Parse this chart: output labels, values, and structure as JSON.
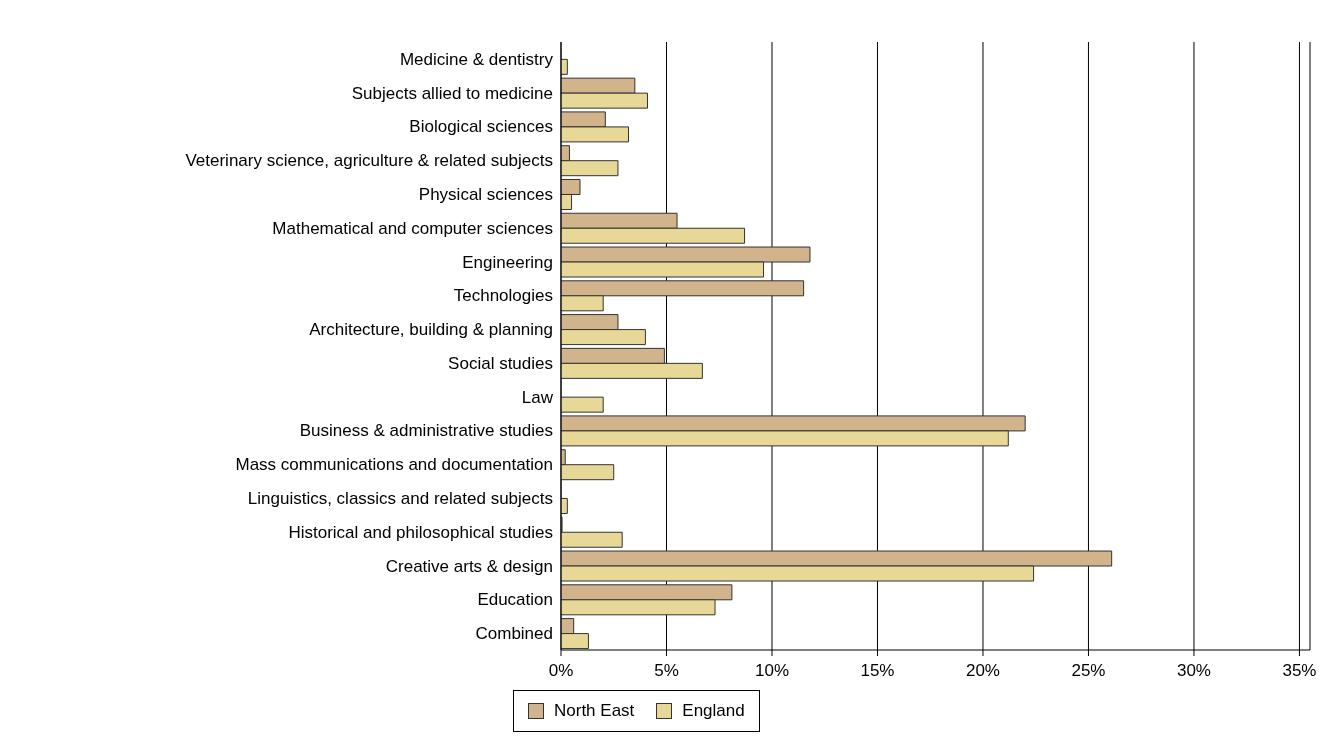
{
  "chart_data": {
    "type": "bar",
    "orientation": "horizontal",
    "categories": [
      "Medicine & dentistry",
      "Subjects allied to medicine",
      "Biological sciences",
      "Veterinary science, agriculture & related subjects",
      "Physical sciences",
      "Mathematical and computer sciences",
      "Engineering",
      "Technologies",
      "Architecture, building & planning",
      "Social studies",
      "Law",
      "Business & administrative studies",
      "Mass communications and documentation",
      "Linguistics, classics and related subjects",
      "Historical and philosophical studies",
      "Creative arts & design",
      "Education",
      "Combined"
    ],
    "series": [
      {
        "name": "North East",
        "color": "#d2b48c",
        "values": [
          null,
          3.5,
          2.1,
          0.4,
          0.9,
          5.5,
          11.8,
          11.5,
          2.7,
          4.9,
          null,
          22.0,
          0.2,
          null,
          0.05,
          26.1,
          8.1,
          0.6
        ]
      },
      {
        "name": "England",
        "color": "#e8d898",
        "values": [
          0.3,
          4.1,
          3.2,
          2.7,
          0.5,
          8.7,
          9.6,
          2.0,
          4.0,
          6.7,
          2.0,
          21.2,
          2.5,
          0.3,
          2.9,
          22.4,
          7.3,
          1.3
        ]
      }
    ],
    "xlim": [
      0,
      35.5
    ],
    "xticks": [
      {
        "value": 0,
        "label": "0%"
      },
      {
        "value": 5,
        "label": "5%"
      },
      {
        "value": 10,
        "label": "10%"
      },
      {
        "value": 15,
        "label": "15%"
      },
      {
        "value": 20,
        "label": "20%"
      },
      {
        "value": 25,
        "label": "25%"
      },
      {
        "value": 30,
        "label": "30%"
      },
      {
        "value": 35,
        "label": "35%"
      }
    ],
    "grid": "x",
    "legend": "bottom left"
  }
}
